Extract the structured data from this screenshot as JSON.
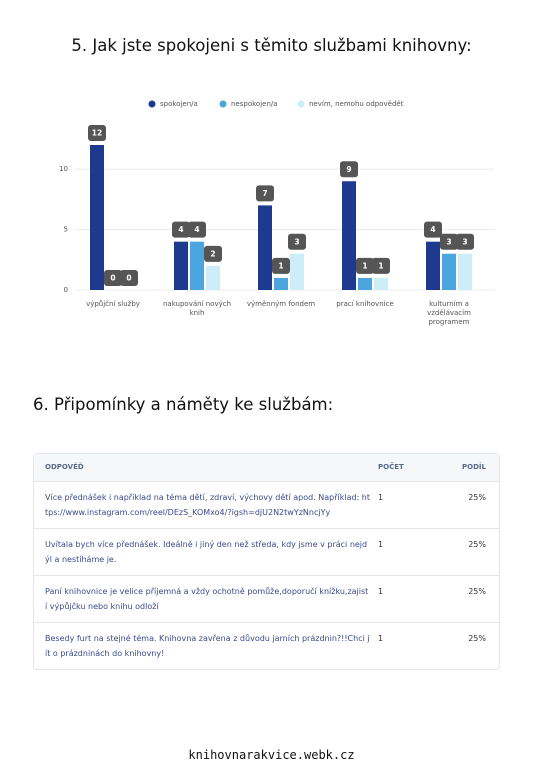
{
  "chart_data": {
    "type": "bar",
    "title": "5. Jak jste spokojeni s těmito službami knihovny:",
    "categories": [
      "výpůjční služby",
      "nakupování nových knih",
      "výměnným fondem",
      "prací knihovnice",
      "kulturním a vzdělávacím programem"
    ],
    "series": [
      {
        "name": "spokojen/a",
        "color": "#1d3a8f",
        "values": [
          12,
          4,
          7,
          9,
          4
        ]
      },
      {
        "name": "nespokojen/a",
        "color": "#4ba6df",
        "values": [
          0,
          4,
          1,
          1,
          3
        ]
      },
      {
        "name": "nevím, nemohu odpovědět",
        "color": "#cdeef9",
        "values": [
          0,
          2,
          3,
          1,
          3
        ]
      }
    ],
    "ylim": [
      0,
      12
    ],
    "yticks": [
      0,
      5,
      10
    ],
    "grid": true,
    "legend": "top"
  },
  "section": {
    "title": "6. Připomínky a náměty ke službám:"
  },
  "table": {
    "header": [
      "ODPOVĚĎ",
      "POČET",
      "PODÍL"
    ],
    "rows": [
      [
        "Více přednášek i například na téma dětí, zdraví, výchovy dětí apod. Například: https://www.instagram.com/reel/DEzS_KOMxo4/?igsh=djU2N2twYzNncjYy",
        1,
        "25%"
      ],
      [
        "Uvítala bych více přednášek. Ideálně i jiný den než středa, kdy jsme v práci nejdýl a nestíháme je.",
        1,
        "25%"
      ],
      [
        "Paní knihovnice je velice příjemná a vždy ochotně pomůže,doporučí knížku,zajistí výpůjčku nebo knihu odloží",
        1,
        "25%"
      ],
      [
        "Besedy furt na stejné téma. Knihovna zavřena z důvodu jarních prázdnin?!!Chci jít o prázdninách do knihovny!",
        1,
        "25%"
      ]
    ]
  },
  "footer": {
    "url": "knihovnarakvice.webk.cz"
  }
}
